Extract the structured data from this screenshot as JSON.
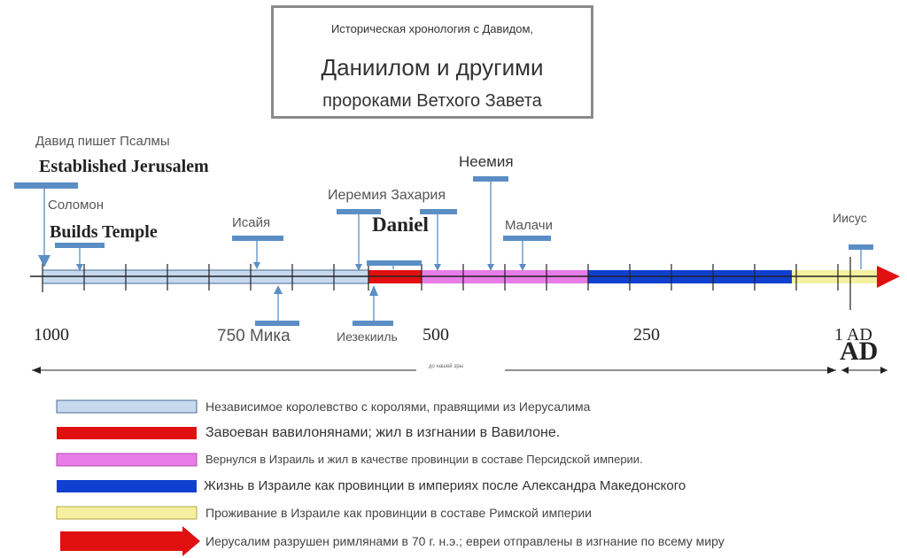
{
  "title": {
    "line1": "Историческая хронология с Давидом,",
    "line2": "Даниилом и другими",
    "line3": "пророками Ветхого Завета"
  },
  "labels": {
    "david_psalms": "Давид пишет Псалмы",
    "established_jerusalem": "Established Jerusalem",
    "solomon": "Соломон",
    "builds_temple": "Builds Temple",
    "isaiah": "Исайя",
    "jeremiah_zechariah": "Иеремия Захария",
    "daniel": "Daniel",
    "nehemiah": "Неемия",
    "malachi": "Малачи",
    "jesus": "Иисус",
    "micah": "750 Мика",
    "ezekiel": "Иезекииль",
    "tiny_caption": "до нашей эры"
  },
  "years": {
    "y1000": "1000",
    "y500": "500",
    "y250": "250",
    "y1ad": "1 AD",
    "ad": "AD"
  },
  "legend": [
    {
      "text": "Независимое королевство с королями, правящими из Иерусалима",
      "color": "#c6d9ef"
    },
    {
      "text": "Завоеван вавилонянами; жил в изгнании в Вавилоне.",
      "color": "#e01010"
    },
    {
      "text": "Вернулся в Израиль и жил в качестве провинции в составе Персидской империи.",
      "color": "#e87de8"
    },
    {
      "text": "Жизнь в Израиле как провинции в империях после Александра Македонского",
      "color": "#1040d0"
    },
    {
      "text": "Проживание в Израиле как провинции в составе Римской империи",
      "color": "#f5f0a0"
    },
    {
      "text": "Иерусалим разрушен римлянами в 70 г. н.э.; евреи отправлены в изгнание по всему миру",
      "color": "#e01010"
    }
  ],
  "colors": {
    "marker": "#5b8ec4",
    "kingdom": "#c6d9ef",
    "babylon": "#e01010",
    "persia": "#e87de8",
    "greek": "#1040d0",
    "roman": "#f5f0a0"
  }
}
